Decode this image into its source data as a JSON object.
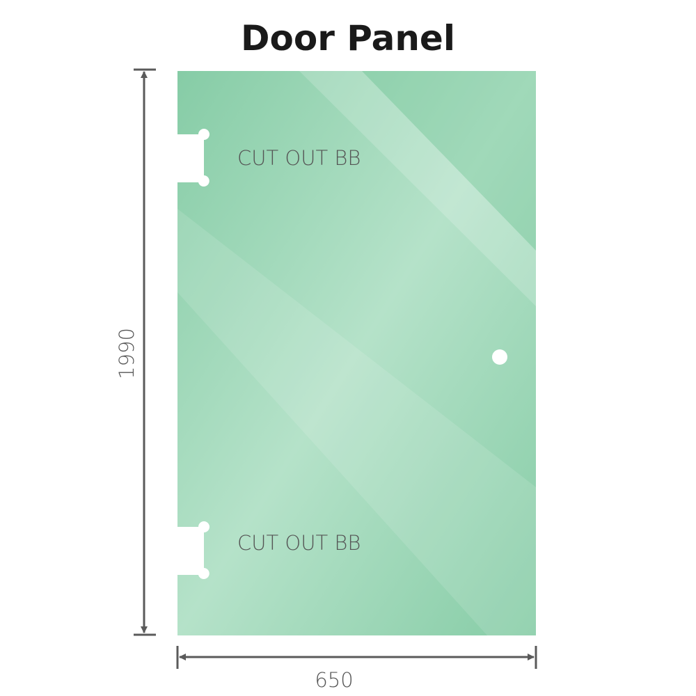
{
  "title": "Door Panel",
  "cutouts": [
    {
      "label": "CUT OUT BB"
    },
    {
      "label": "CUT OUT BB"
    }
  ],
  "dimensions": {
    "height": "1990",
    "width": "650"
  },
  "colors": {
    "glass": "#8fd2ae",
    "glass_light": "#b8e4cc",
    "dimension_line": "#5a5a5a",
    "label": "#555555"
  }
}
